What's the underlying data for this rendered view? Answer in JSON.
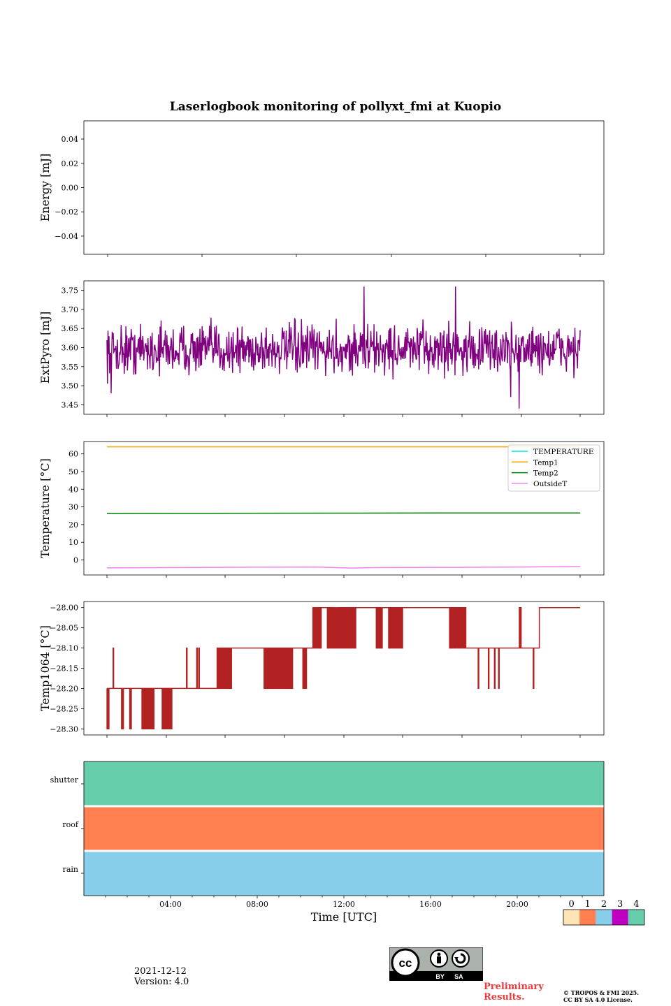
{
  "title": "Laserlogbook monitoring of pollyxt_fmi at Kuopio",
  "footer": {
    "date": "2021-12-12",
    "version": "Version: 4.0",
    "preliminary": "Preliminary Results.",
    "copyright_line1": "© TROPOS & FMI 2025.",
    "copyright_line2": "CC BY SA 4.0 License.",
    "license_badge": "BY SA"
  },
  "colors": {
    "extpyro": "#800080",
    "temperature": "#00e5ee",
    "temp1": "#ffa500",
    "temp2": "#008000",
    "outsidet": "#ee82ee",
    "temp1064": "#b22222",
    "shutter": "#66cdaa",
    "roof": "#ff7f50",
    "rain": "#87ceeb"
  },
  "chart_data": [
    {
      "type": "line",
      "ylabel": "Energy [mJ]",
      "ylim": [
        -0.055,
        0.055
      ],
      "yticks": [
        "0.04",
        "0.02",
        "0.00",
        "−0.02",
        "−0.04"
      ],
      "ytick_values": [
        0.04,
        0.02,
        0.0,
        -0.02,
        -0.04
      ],
      "series": []
    },
    {
      "type": "line",
      "ylabel": "ExtPyro [mJ]",
      "ylim": [
        3.425,
        3.775
      ],
      "yticks": [
        "3.75",
        "3.70",
        "3.65",
        "3.60",
        "3.55",
        "3.50",
        "3.45"
      ],
      "ytick_values": [
        3.75,
        3.7,
        3.65,
        3.6,
        3.55,
        3.5,
        3.45
      ],
      "x_range_hours": [
        0.8,
        24.0
      ],
      "series": [
        {
          "name": "ExtPyro",
          "mean": 3.595,
          "spread": 0.04,
          "min": 3.44,
          "max": 3.76,
          "peaks": [
            [
              13.4,
              3.76
            ],
            [
              17.9,
              3.76
            ],
            [
              21.0,
              3.44
            ],
            [
              20.6,
              3.47
            ],
            [
              1.0,
              3.48
            ]
          ]
        }
      ]
    },
    {
      "type": "line",
      "ylabel": "Temperature [°C]",
      "ylim": [
        -8.5,
        67
      ],
      "yticks": [
        "60",
        "50",
        "40",
        "30",
        "20",
        "10",
        "0"
      ],
      "ytick_values": [
        60,
        50,
        40,
        30,
        20,
        10,
        0
      ],
      "legend": [
        "TEMPERATURE",
        "Temp1",
        "Temp2",
        "OutsideT"
      ],
      "legend_placement": "top-right",
      "series": [
        {
          "name": "TEMPERATURE",
          "x": [],
          "values": []
        },
        {
          "name": "Temp1",
          "x": [
            0.8,
            24.0
          ],
          "values": [
            64.0,
            64.0
          ]
        },
        {
          "name": "Temp2",
          "x": [
            0.8,
            6,
            12,
            18,
            24.0
          ],
          "values": [
            26.3,
            26.4,
            26.5,
            26.6,
            26.6
          ]
        },
        {
          "name": "OutsideT",
          "x": [
            0.8,
            4,
            8,
            11,
            12.8,
            14,
            18,
            22,
            24.0
          ],
          "values": [
            -4.5,
            -4.3,
            -4.1,
            -4.0,
            -4.6,
            -4.3,
            -4.2,
            -3.9,
            -3.8
          ]
        }
      ]
    },
    {
      "type": "line",
      "ylabel": "Temp1064 [°C]",
      "ylim": [
        -28.315,
        -27.985
      ],
      "yticks": [
        "−28.00",
        "−28.05",
        "−28.10",
        "−28.15",
        "−28.20",
        "−28.25",
        "−28.30"
      ],
      "ytick_values": [
        -28.0,
        -28.05,
        -28.1,
        -28.15,
        -28.2,
        -28.25,
        -28.3
      ],
      "series": [
        {
          "name": "Temp1064",
          "segments": [
            {
              "from": 0.8,
              "to": 4.7,
              "base": -28.2,
              "spikes_to": -28.3,
              "spike_ranges": [
                [
                  0.8,
                  0.9
                ],
                [
                  1.5,
                  1.6
                ],
                [
                  1.9,
                  2.0
                ],
                [
                  2.5,
                  3.1
                ],
                [
                  3.5,
                  4.0
                ]
              ],
              "up_spikes_to": -28.1,
              "up_spikes": [
                1.1
              ]
            },
            {
              "from": 4.7,
              "to": 6.2,
              "base": -28.2,
              "up_spikes_to": -28.1,
              "up_spikes": [
                4.7,
                5.2,
                5.3
              ]
            },
            {
              "from": 6.2,
              "to": 10.9,
              "base": -28.1,
              "spikes_to": -28.2,
              "spike_ranges": [
                [
                  6.2,
                  6.9
                ],
                [
                  8.5,
                  9.9
                ],
                [
                  10.4,
                  10.6
                ]
              ]
            },
            {
              "from": 10.9,
              "to": 17.6,
              "base": -28.0,
              "spikes_to": -28.1,
              "spike_ranges": [
                [
                  10.9,
                  11.3
                ],
                [
                  11.6,
                  13.0
                ],
                [
                  14.0,
                  14.3
                ],
                [
                  14.6,
                  15.3
                ]
              ]
            },
            {
              "from": 17.6,
              "to": 22.0,
              "base": -28.1,
              "spikes_to": -28.0,
              "spike_ranges": [
                [
                  17.6,
                  18.4
                ],
                [
                  21.0,
                  21.1
                ]
              ],
              "down_spikes_to": -28.2,
              "down_spikes": [
                19.0,
                19.5,
                19.8,
                20.0,
                21.7
              ]
            },
            {
              "from": 22.0,
              "to": 24.0,
              "base": -28.0
            }
          ]
        }
      ]
    },
    {
      "type": "heatmap",
      "rows": [
        "shutter",
        "roof",
        "rain"
      ],
      "row_status": [
        4,
        1,
        2
      ],
      "xlabel": "Time [UTC]",
      "xticks": [
        "04:00",
        "08:00",
        "12:00",
        "16:00",
        "20:00"
      ],
      "xtick_hours": [
        4,
        8,
        12,
        16,
        20
      ],
      "xlim_hours": [
        0,
        24
      ],
      "colorbar": {
        "labels": [
          "0",
          "1",
          "2",
          "3",
          "4"
        ],
        "colors": [
          "#ffe4b5",
          "#ff7f50",
          "#87ceeb",
          "#c000c0",
          "#66cdaa"
        ]
      }
    }
  ]
}
